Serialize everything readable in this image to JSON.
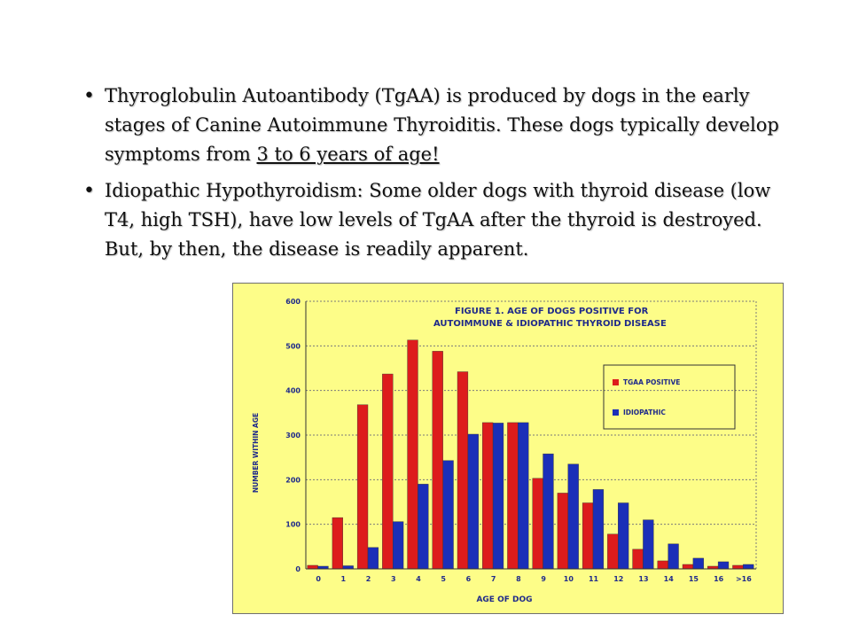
{
  "bullets": [
    {
      "pre": "Thyroglobulin Autoantibody (TgAA) is produced by dogs in the early stages of Canine Autoimmune Thyroiditis. These dogs typically develop symptoms from ",
      "underlined": "3 to 6 years of age!",
      "post": ""
    },
    {
      "pre": "Idiopathic Hypothyroidism: Some older dogs with thyroid disease (low T4, high TSH), have low levels of TgAA after the thyroid is destroyed. But, by then, the disease is readily apparent.",
      "underlined": "",
      "post": ""
    }
  ],
  "bullet_glyph": "•",
  "chart_data": {
    "type": "bar",
    "title_line1": "FIGURE 1. AGE OF DOGS POSITIVE FOR",
    "title_line2": "AUTOIMMUNE & IDIOPATHIC THYROID DISEASE",
    "xlabel": "AGE OF DOG",
    "ylabel": "NUMBER WITHIN AGE",
    "categories": [
      "0",
      "1",
      "2",
      "3",
      "4",
      "5",
      "6",
      "7",
      "8",
      "9",
      "10",
      "11",
      "12",
      "13",
      "14",
      "15",
      "16",
      ">16"
    ],
    "ylim": [
      0,
      600
    ],
    "yticks": [
      "0",
      "100",
      "200",
      "300",
      "400",
      "500",
      "600"
    ],
    "grid": true,
    "legend_position": "right",
    "series": [
      {
        "name": "TGAA POSITIVE",
        "color": "#dd1c1c",
        "values": [
          8,
          115,
          368,
          437,
          513,
          488,
          442,
          328,
          328,
          203,
          170,
          148,
          78,
          44,
          18,
          10,
          6,
          8
        ]
      },
      {
        "name": "IDIOPATHIC",
        "color": "#1b2fb8",
        "values": [
          6,
          7,
          48,
          106,
          190,
          243,
          302,
          327,
          328,
          258,
          235,
          178,
          148,
          110,
          56,
          24,
          16,
          10
        ]
      }
    ],
    "colors": {
      "background": "#fdfd88",
      "axis_text": "#1f2a8a",
      "grid": "#7a7a7a"
    }
  }
}
